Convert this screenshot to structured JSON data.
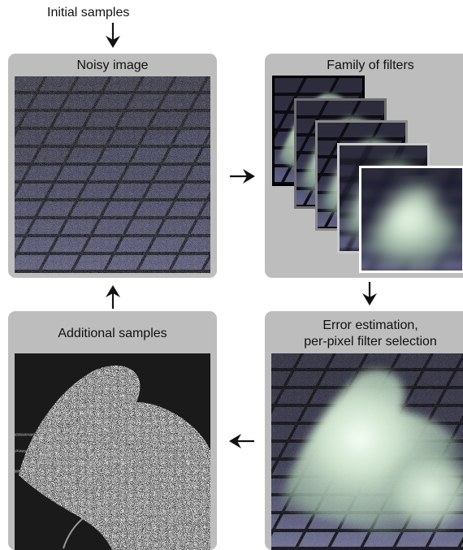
{
  "labels": {
    "initial_samples": "Initial samples",
    "noisy_image": "Noisy image",
    "family_of_filters": "Family of filters",
    "error_estimation_line1": "Error estimation,",
    "error_estimation_line2": "per-pixel filter selection",
    "additional_samples": "Additional samples"
  },
  "colors": {
    "panel_bg": "#bdbdbd",
    "scene_dark": "#1f1f2a",
    "floor_blue": "#5a5a7c",
    "smoke_green": "#c7dcc7",
    "layer_border_dark": "#000000",
    "layer_border_gray": "#7a7a7a",
    "layer_border_white": "#ffffff"
  },
  "icons": [
    "arrow-down-icon",
    "arrow-right-icon",
    "arrow-up-icon",
    "arrow-left-icon"
  ]
}
